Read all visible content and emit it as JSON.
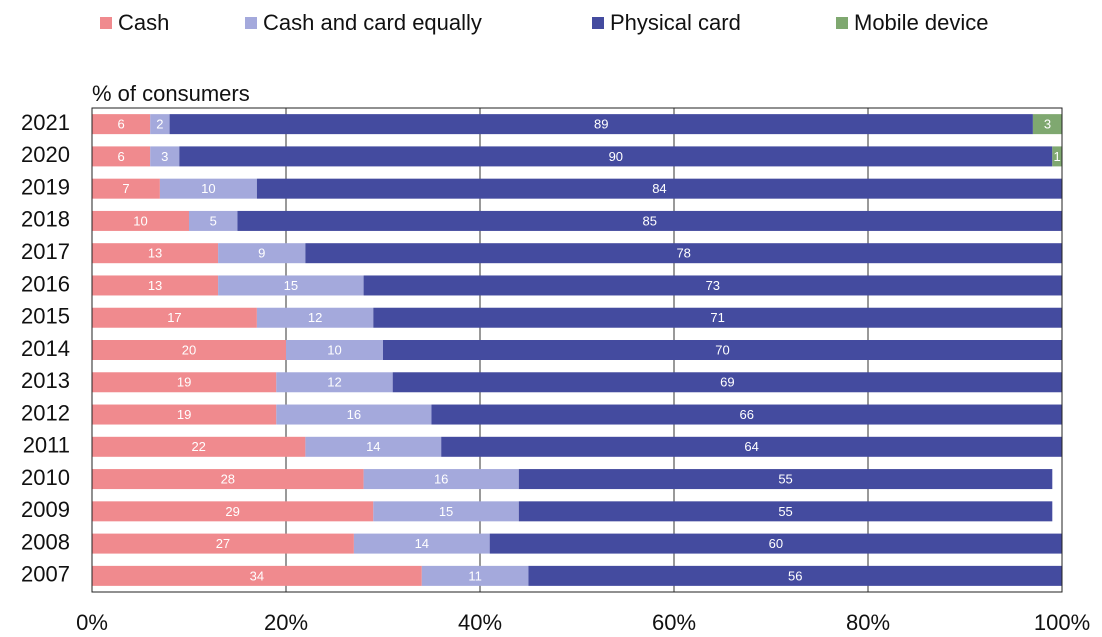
{
  "chart_data": {
    "type": "bar",
    "orientation": "horizontal",
    "stacked": true,
    "x_label": "% of consumers",
    "categories": [
      "2021",
      "2020",
      "2019",
      "2018",
      "2017",
      "2016",
      "2015",
      "2014",
      "2013",
      "2012",
      "2011",
      "2010",
      "2009",
      "2008",
      "2007"
    ],
    "series": [
      {
        "name": "Cash",
        "color": "#f08a8e",
        "values": [
          6,
          6,
          7,
          10,
          13,
          13,
          17,
          20,
          19,
          19,
          22,
          28,
          29,
          27,
          34
        ]
      },
      {
        "name": "Cash and card equally",
        "color": "#a4a9dc",
        "values": [
          2,
          3,
          10,
          5,
          9,
          15,
          12,
          10,
          12,
          16,
          14,
          16,
          15,
          14,
          11
        ]
      },
      {
        "name": "Physical card",
        "color": "#444b9f",
        "values": [
          89,
          90,
          84,
          85,
          78,
          73,
          71,
          70,
          69,
          66,
          64,
          55,
          55,
          60,
          56
        ]
      },
      {
        "name": "Mobile device",
        "color": "#7fa870",
        "values": [
          3,
          1,
          null,
          null,
          null,
          null,
          null,
          null,
          null,
          null,
          null,
          null,
          null,
          null,
          null
        ]
      }
    ],
    "xlim": [
      0,
      100
    ],
    "xticks": [
      {
        "value": 0,
        "label": "0%"
      },
      {
        "value": 20,
        "label": "20%"
      },
      {
        "value": 40,
        "label": "40%"
      },
      {
        "value": 60,
        "label": "60%"
      },
      {
        "value": 80,
        "label": "80%"
      },
      {
        "value": 100,
        "label": "100%"
      }
    ],
    "grid": true,
    "legend": "top"
  }
}
